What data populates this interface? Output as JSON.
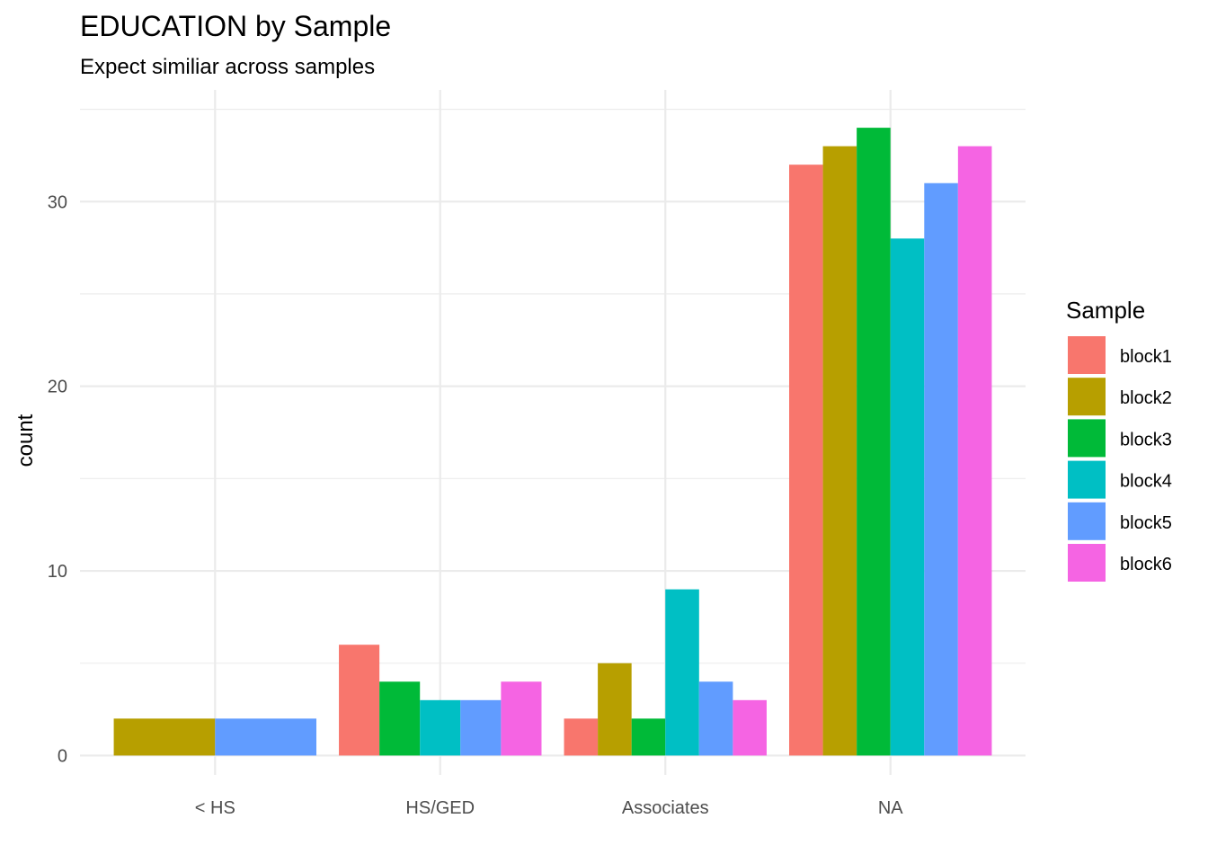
{
  "chart_data": {
    "type": "bar",
    "title": "EDUCATION by Sample",
    "subtitle": "Expect similiar across samples",
    "xlabel": "",
    "ylabel": "count",
    "ylim": [
      0,
      35
    ],
    "y_ticks": [
      0,
      10,
      20,
      30
    ],
    "categories": [
      "< HS",
      "HS/GED",
      "Associates",
      "NA"
    ],
    "legend_title": "Sample",
    "legend_position": "right",
    "grid": true,
    "dodge": "preserve-total",
    "series": [
      {
        "name": "block1",
        "color": "#F8766D",
        "values": [
          null,
          6,
          2,
          32
        ]
      },
      {
        "name": "block2",
        "color": "#B79F00",
        "values": [
          2,
          null,
          5,
          33
        ]
      },
      {
        "name": "block3",
        "color": "#00BA38",
        "values": [
          null,
          4,
          2,
          34
        ]
      },
      {
        "name": "block4",
        "color": "#00BFC4",
        "values": [
          null,
          3,
          9,
          28
        ]
      },
      {
        "name": "block5",
        "color": "#619CFF",
        "values": [
          2,
          3,
          4,
          31
        ]
      },
      {
        "name": "block6",
        "color": "#F564E3",
        "values": [
          null,
          4,
          3,
          33
        ]
      }
    ]
  }
}
